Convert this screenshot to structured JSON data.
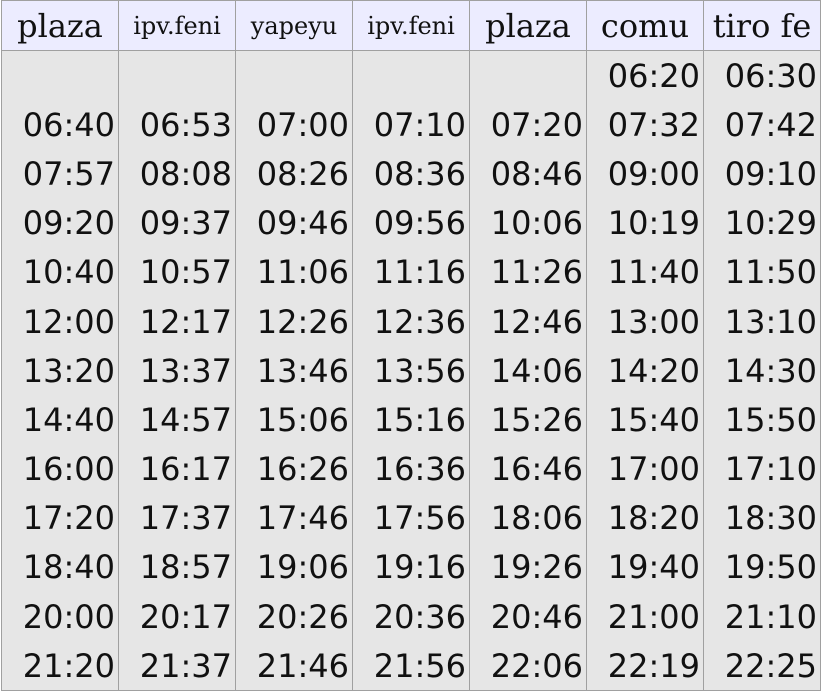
{
  "headers": [
    "plaza",
    "ipv.feni",
    "yapeyu",
    "ipv.feni",
    "plaza",
    "comu",
    "tiro fe"
  ],
  "rows": [
    [
      "",
      "",
      "",
      "",
      "",
      "06:20",
      "06:30"
    ],
    [
      "06:40",
      "06:53",
      "07:00",
      "07:10",
      "07:20",
      "07:32",
      "07:42"
    ],
    [
      "07:57",
      "08:08",
      "08:26",
      "08:36",
      "08:46",
      "09:00",
      "09:10"
    ],
    [
      "09:20",
      "09:37",
      "09:46",
      "09:56",
      "10:06",
      "10:19",
      "10:29"
    ],
    [
      "10:40",
      "10:57",
      "11:06",
      "11:16",
      "11:26",
      "11:40",
      "11:50"
    ],
    [
      "12:00",
      "12:17",
      "12:26",
      "12:36",
      "12:46",
      "13:00",
      "13:10"
    ],
    [
      "13:20",
      "13:37",
      "13:46",
      "13:56",
      "14:06",
      "14:20",
      "14:30"
    ],
    [
      "14:40",
      "14:57",
      "15:06",
      "15:16",
      "15:26",
      "15:40",
      "15:50"
    ],
    [
      "16:00",
      "16:17",
      "16:26",
      "16:36",
      "16:46",
      "17:00",
      "17:10"
    ],
    [
      "17:20",
      "17:37",
      "17:46",
      "17:56",
      "18:06",
      "18:20",
      "18:30"
    ],
    [
      "18:40",
      "18:57",
      "19:06",
      "19:16",
      "19:26",
      "19:40",
      "19:50"
    ],
    [
      "20:00",
      "20:17",
      "20:26",
      "20:36",
      "20:46",
      "21:00",
      "21:10"
    ],
    [
      "21:20",
      "21:37",
      "21:46",
      "21:56",
      "22:06",
      "22:19",
      "22:25"
    ]
  ]
}
